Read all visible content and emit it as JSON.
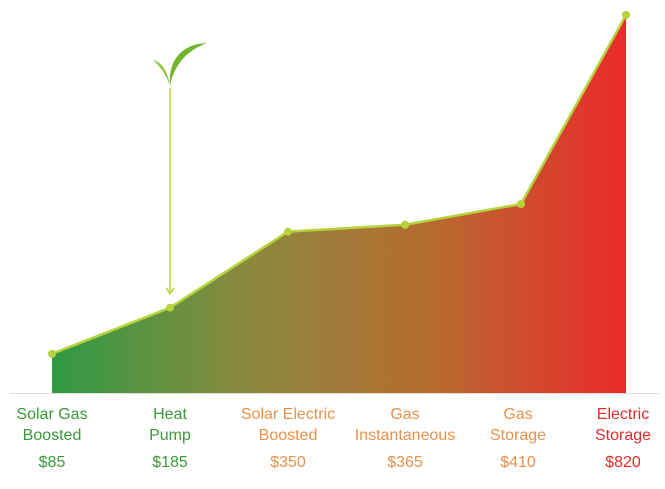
{
  "chart_data": {
    "type": "area",
    "categories": [
      [
        "Solar Gas",
        "Boosted"
      ],
      [
        "Heat",
        "Pump"
      ],
      [
        "Solar Electric",
        "Boosted"
      ],
      [
        "Gas",
        "Instantaneous"
      ],
      [
        "Gas",
        "Storage"
      ],
      [
        "Electric",
        "Storage"
      ]
    ],
    "values": [
      85,
      185,
      350,
      365,
      410,
      820
    ],
    "value_labels": [
      "$85",
      "$185",
      "$350",
      "$365",
      "$410",
      "$820"
    ],
    "ylim": [
      0,
      820
    ],
    "grid": false,
    "legend": "none",
    "label_colors": [
      "#3a9a3a",
      "#3a9a3a",
      "#e8914a",
      "#e8914a",
      "#e8914a",
      "#e52a2a"
    ],
    "gradient": [
      "#2f9a44",
      "#8a8a3e",
      "#b86a30",
      "#ea2a2a"
    ],
    "line_color": "#b5d33a",
    "marker_color": "#b5d33a",
    "highlight": {
      "category_index": 1,
      "icon": "leaf-sprout-icon"
    }
  }
}
